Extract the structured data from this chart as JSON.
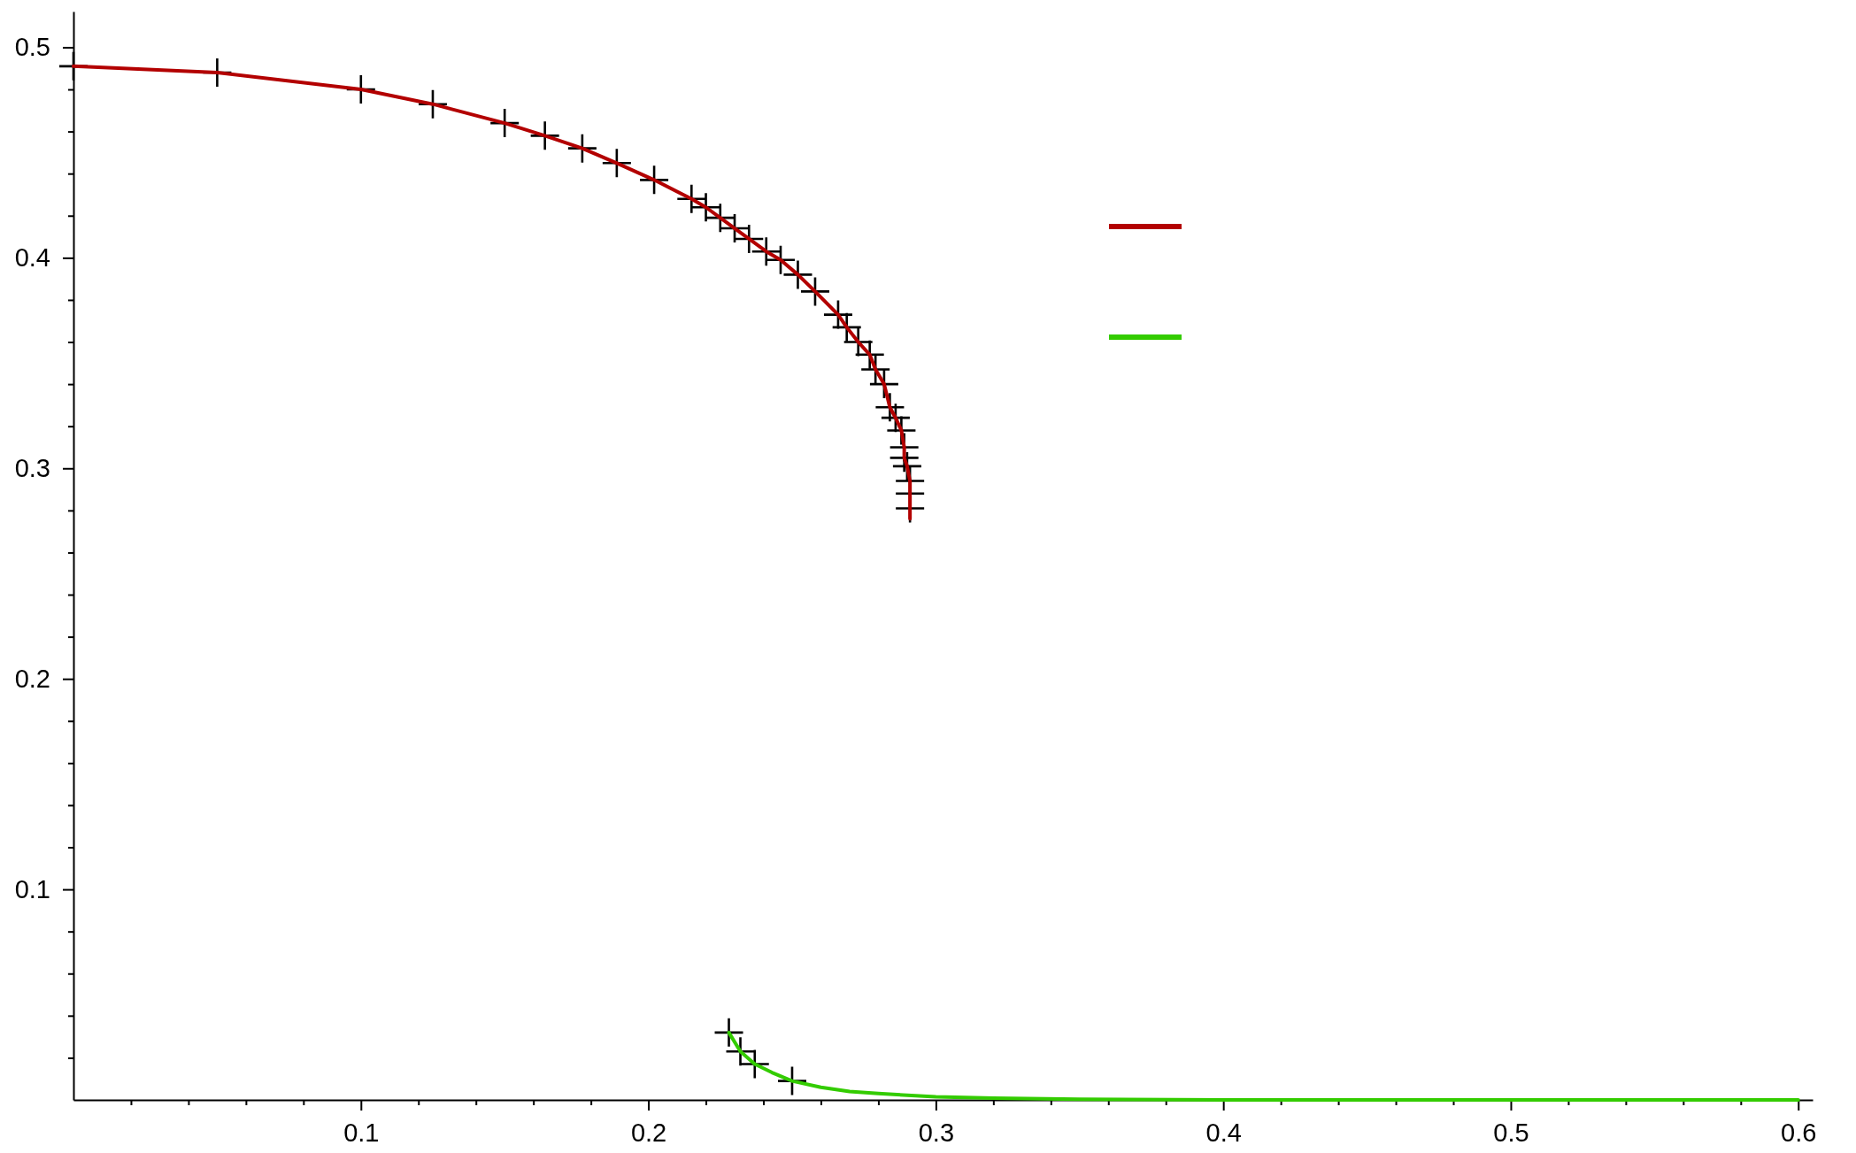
{
  "chart_data": {
    "type": "line",
    "xlim": [
      0,
      0.605
    ],
    "ylim": [
      0,
      0.517
    ],
    "xticks": [
      {
        "value": 0.02,
        "label": null
      },
      {
        "value": 0.04,
        "label": null
      },
      {
        "value": 0.06,
        "label": null
      },
      {
        "value": 0.08,
        "label": null
      },
      0.1,
      {
        "value": 0.12,
        "label": null
      },
      {
        "value": 0.14,
        "label": null
      },
      {
        "value": 0.16,
        "label": null
      },
      {
        "value": 0.18,
        "label": null
      },
      0.2,
      {
        "value": 0.22,
        "label": null
      },
      {
        "value": 0.24,
        "label": null
      },
      {
        "value": 0.26,
        "label": null
      },
      {
        "value": 0.28,
        "label": null
      },
      0.3,
      {
        "value": 0.32,
        "label": null
      },
      {
        "value": 0.34,
        "label": null
      },
      {
        "value": 0.36,
        "label": null
      },
      {
        "value": 0.38,
        "label": null
      },
      0.4,
      {
        "value": 0.42,
        "label": null
      },
      {
        "value": 0.44,
        "label": null
      },
      {
        "value": 0.46,
        "label": null
      },
      {
        "value": 0.48,
        "label": null
      },
      0.5,
      {
        "value": 0.52,
        "label": null
      },
      {
        "value": 0.54,
        "label": null
      },
      {
        "value": 0.56,
        "label": null
      },
      {
        "value": 0.58,
        "label": null
      },
      0.6
    ],
    "yticks": [
      {
        "value": 0.02,
        "label": null
      },
      {
        "value": 0.04,
        "label": null
      },
      {
        "value": 0.06,
        "label": null
      },
      {
        "value": 0.08,
        "label": null
      },
      0.1,
      {
        "value": 0.12,
        "label": null
      },
      {
        "value": 0.14,
        "label": null
      },
      {
        "value": 0.16,
        "label": null
      },
      {
        "value": 0.18,
        "label": null
      },
      0.2,
      {
        "value": 0.22,
        "label": null
      },
      {
        "value": 0.24,
        "label": null
      },
      {
        "value": 0.26,
        "label": null
      },
      {
        "value": 0.28,
        "label": null
      },
      0.3,
      {
        "value": 0.32,
        "label": null
      },
      {
        "value": 0.34,
        "label": null
      },
      {
        "value": 0.36,
        "label": null
      },
      {
        "value": 0.38,
        "label": null
      },
      0.4,
      {
        "value": 0.42,
        "label": null
      },
      {
        "value": 0.44,
        "label": null
      },
      {
        "value": 0.46,
        "label": null
      },
      {
        "value": 0.48,
        "label": null
      },
      0.5
    ],
    "grid": false,
    "series": [
      {
        "color": "#b30000",
        "marker": "none",
        "x": [
          0,
          0.05,
          0.1,
          0.125,
          0.15,
          0.164,
          0.177,
          0.189,
          0.202,
          0.215,
          0.22,
          0.225,
          0.23,
          0.235,
          0.241,
          0.246,
          0.252,
          0.258,
          0.266,
          0.269,
          0.273,
          0.277,
          0.279,
          0.282,
          0.284,
          0.286,
          0.288,
          0.289,
          0.289,
          0.29,
          0.291,
          0.291,
          0.291
        ],
        "values": [
          0.491,
          0.488,
          0.48,
          0.473,
          0.464,
          0.458,
          0.452,
          0.445,
          0.437,
          0.428,
          0.424,
          0.419,
          0.414,
          0.409,
          0.403,
          0.399,
          0.392,
          0.384,
          0.373,
          0.367,
          0.36,
          0.354,
          0.347,
          0.34,
          0.329,
          0.324,
          0.318,
          0.31,
          0.305,
          0.301,
          0.294,
          0.288,
          0.276
        ]
      },
      {
        "color": "#33cc00",
        "marker": "none",
        "x": [
          0.228,
          0.232,
          0.237,
          0.243,
          0.25,
          0.26,
          0.27,
          0.28,
          0.3,
          0.32,
          0.35,
          0.4,
          0.5,
          0.6
        ],
        "values": [
          0.032,
          0.023,
          0.017,
          0.013,
          0.009,
          0.006,
          0.004,
          0.003,
          0.0015,
          0.0008,
          0.0003,
          0,
          0,
          0
        ]
      },
      {
        "type": "scatter",
        "color": "#000000",
        "marker": "cross",
        "x": [
          0,
          0.05,
          0.1,
          0.125,
          0.15,
          0.164,
          0.177,
          0.189,
          0.202,
          0.215,
          0.22,
          0.225,
          0.23,
          0.235,
          0.241,
          0.246,
          0.252,
          0.258,
          0.266,
          0.269,
          0.273,
          0.277,
          0.279,
          0.282,
          0.284,
          0.286,
          0.288,
          0.289,
          0.289,
          0.29,
          0.291,
          0.291,
          0.291,
          0.228,
          0.232,
          0.237,
          0.25
        ],
        "values": [
          0.491,
          0.488,
          0.48,
          0.473,
          0.464,
          0.458,
          0.452,
          0.445,
          0.437,
          0.428,
          0.424,
          0.419,
          0.414,
          0.409,
          0.403,
          0.399,
          0.392,
          0.384,
          0.373,
          0.367,
          0.36,
          0.354,
          0.347,
          0.34,
          0.329,
          0.324,
          0.318,
          0.31,
          0.305,
          0.301,
          0.294,
          0.288,
          0.281,
          0.032,
          0.023,
          0.017,
          0.009
        ]
      }
    ]
  }
}
